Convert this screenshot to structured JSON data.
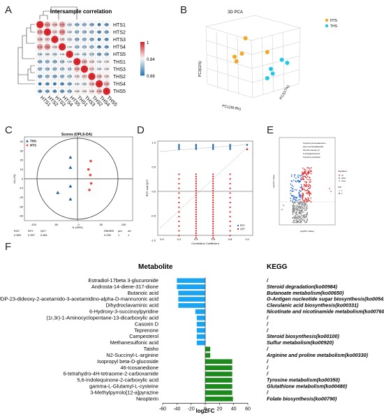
{
  "panels": {
    "a": "A",
    "b": "B",
    "c": "C",
    "d": "D",
    "e": "E",
    "f": "F"
  },
  "heatmap": {
    "title": "Intersample correlation",
    "samples": [
      "HTS1",
      "HTS2",
      "HTS3",
      "HTS4",
      "HTS5",
      "THS1",
      "THS3",
      "THS2",
      "THS4",
      "THS5"
    ],
    "legend_ticks": [
      "1",
      "0.84",
      "0.68"
    ],
    "colors": {
      "high": "#d7262c",
      "mid": "#f6f6f6",
      "low": "#2c7bb6"
    }
  },
  "pca3d": {
    "title": "3D PCA",
    "pc1": "PC1(38.9%)",
    "pc2": "PC2(17%)",
    "pc3": "PC3(11%)",
    "legend": [
      "HTS",
      "THS"
    ],
    "colors": {
      "HTS": "#f5a623",
      "THS": "#1ec8e6"
    }
  },
  "opls": {
    "title": "Scores (OPLS-DA)",
    "legend": [
      "THS",
      "HTS"
    ],
    "colors": {
      "THS": "#1f5f99",
      "HTS": "#e8463d"
    },
    "xlabel": "t1 (36%)",
    "ylabel": "to1 (%)",
    "xticks": [
      "-100",
      "-50",
      "0",
      "50",
      "100"
    ],
    "yticks": [
      "40",
      "30",
      "20",
      "10",
      "0",
      "-10",
      "-20",
      "-30",
      "-40"
    ],
    "stats_headers": [
      "R2X",
      "R2Y",
      "Q2Y",
      "RMSEE",
      "pre",
      "ort"
    ],
    "stats_values": [
      "0.569",
      "0.997",
      "0.861",
      "0.032",
      "1",
      "1"
    ]
  },
  "permutation": {
    "xlabel": "Correlation Coefficient",
    "ylabel": "R2Y and Q2Y",
    "legend": [
      "R2Y",
      "Q2Y"
    ],
    "xticks": [
      "0.0",
      "0.2",
      "0.4",
      "0.6",
      "0.8",
      "1.0"
    ],
    "yticks": [
      "1.0",
      "0.5",
      "0.0",
      "-0.5",
      "-1.0"
    ],
    "colors": {
      "R2Y": "#2d6fb0",
      "Q2Y": "#e0282e"
    }
  },
  "volcano": {
    "xlabel": "log2(FC Value)",
    "ylabel": "-log10 P Value",
    "annotations": [
      "6-Hydroxy-Ile-Isovaleramine",
      "(E)-p-coumaroyldipeptide",
      "Phe-Phe-Ala-Gly (X)",
      "N-Acetylglucosamine",
      "5-Hydroxy-tryptophan"
    ],
    "legend_title": "regulated",
    "legend_items": [
      "up",
      "down",
      "none"
    ],
    "legend_title2": "VIP",
    "legend_items2": [
      "1",
      "2"
    ]
  },
  "chart_data": [
    {
      "type": "heatmap",
      "title": "Intersample correlation",
      "rows": [
        "HTS1",
        "HTS2",
        "HTS3",
        "HTS4",
        "HTS5",
        "THS1",
        "THS3",
        "THS2",
        "THS4",
        "THS5"
      ],
      "columns": [
        "HTS1",
        "HTS2",
        "HTS3",
        "HTS4",
        "HTS5",
        "THS1",
        "THS3",
        "THS2",
        "THS4",
        "THS5"
      ],
      "values": [
        [
          1,
          0.91,
          0.88,
          0.91,
          0.81,
          0.76,
          0.77,
          0.75,
          0.7,
          0.72
        ],
        [
          0.91,
          1,
          0.87,
          0.92,
          0.82,
          0.77,
          0.78,
          0.77,
          0.72,
          0.74
        ],
        [
          0.88,
          0.87,
          1,
          0.86,
          0.81,
          0.76,
          0.77,
          0.75,
          0.7,
          0.71
        ],
        [
          0.91,
          0.92,
          0.86,
          1,
          0.84,
          0.78,
          0.79,
          0.77,
          0.71,
          0.73
        ],
        [
          0.81,
          0.82,
          0.81,
          0.84,
          1,
          0.83,
          0.8,
          0.79,
          0.74,
          0.76
        ],
        [
          0.76,
          0.77,
          0.76,
          0.78,
          0.83,
          1,
          0.89,
          0.86,
          0.83,
          0.85
        ],
        [
          0.77,
          0.78,
          0.77,
          0.79,
          0.8,
          0.89,
          1,
          0.87,
          0.82,
          0.85
        ],
        [
          0.75,
          0.77,
          0.75,
          0.77,
          0.79,
          0.86,
          0.87,
          1,
          0.88,
          0.86
        ],
        [
          0.7,
          0.72,
          0.7,
          0.71,
          0.74,
          0.83,
          0.82,
          0.88,
          1,
          0.89
        ],
        [
          0.72,
          0.74,
          0.71,
          0.73,
          0.76,
          0.85,
          0.85,
          0.86,
          0.89,
          1
        ]
      ],
      "range": [
        0.68,
        1
      ]
    },
    {
      "type": "scatter",
      "title": "3D PCA",
      "xlabel": "PC1(38.9%)",
      "series": [
        {
          "name": "HTS",
          "points": [
            [
              -0.3,
              0.3
            ],
            [
              -0.2,
              0.8
            ],
            [
              -0.5,
              0.2
            ],
            [
              -0.45,
              0.05
            ],
            [
              0.4,
              0.35
            ]
          ]
        },
        {
          "name": "THS",
          "points": [
            [
              0.8,
              0.1
            ],
            [
              0.95,
              0.0
            ],
            [
              0.5,
              -0.2
            ],
            [
              0.55,
              -0.35
            ],
            [
              0.4,
              -0.5
            ]
          ]
        }
      ]
    },
    {
      "type": "scatter",
      "title": "Scores (OPLS-DA)",
      "xlabel": "t1 (36%)",
      "ylabel": "to1 (%)",
      "xlim": [
        -120,
        120
      ],
      "ylim": [
        -45,
        45
      ],
      "series": [
        {
          "name": "THS",
          "points": [
            [
              -18,
              23
            ],
            [
              -18,
              12
            ],
            [
              -18,
              -8
            ],
            [
              -18,
              -22
            ],
            [
              -46,
              -15
            ]
          ]
        },
        {
          "name": "HTS",
          "points": [
            [
              27,
              19
            ],
            [
              22,
              10
            ],
            [
              26,
              4
            ],
            [
              28,
              -5
            ],
            [
              24,
              -12
            ]
          ]
        }
      ]
    },
    {
      "type": "bar",
      "orientation": "horizontal",
      "xlabel": "log2FC",
      "xlim": [
        -60,
        60
      ],
      "categories": [
        "Estradiol-17beta 3-glucuronide",
        "Androsta-14-diene-317-dione",
        "Butanoic acid",
        "UDP-23-dideoxy-2-acetamido-3-acetamidino-alpha-D-mannuronic acid",
        "Dihydroclavaminic acid",
        "6-Hydroxy-3-succinoylpyridine",
        "(1r,3r)-1-Aminocyclopentane-13-dicarboxylic acid",
        "Casoxin D",
        "Teprenone",
        "Campesterol",
        "Methanesulfonic acid",
        "Taisho",
        "N2-Succinyl-L-arginine",
        "Isopropyl beta-D-glucoside",
        "46-Icosanedione",
        "6-tetrahydro-4H-tetracene-2-carboxamide",
        "5,6-Indolequinone-2-carboxylic acid",
        "gamma-L-Glutamyl-L-cysteine",
        "3-Methylpyrrolo[12-a]pyrazine",
        "Neopterin"
      ],
      "values": [
        -40,
        -40,
        -38,
        -38,
        -38,
        -14,
        -12,
        -12,
        -12,
        -12,
        -12,
        7,
        7,
        38,
        38,
        38,
        38,
        38,
        38,
        39
      ],
      "kegg": [
        "/",
        "Steroid degradation(ko00984)",
        "Butanoate metabolism(ko00650)",
        "O-Antigen nucleotide sugar biosynthesis(ko00541)",
        "Clavulanic acid biosynthesis(ko00331)",
        "Nicotinate and nicotinamide metabolism(ko00760)",
        "/",
        "/",
        "/",
        "Steroid biosynthesis(ko00100)",
        "Sulfur metabolism(ko00920)",
        "/",
        "Arginine and proline metabolism(ko00330)",
        "/",
        "/",
        "/",
        "Tyrosine metabolism(ko00350)",
        "Glutathione metabolism(ko00480)",
        "/",
        "Folate biosynthesis(ko00790)"
      ],
      "xticks": [
        "-60",
        "-40",
        "-20",
        "0",
        "20",
        "40",
        "60"
      ],
      "headers": {
        "metabolite": "Metabolite",
        "kegg": "KEGG"
      },
      "colors": {
        "negative": "#1aa3f0",
        "positive": "#1e8a1e"
      }
    }
  ]
}
